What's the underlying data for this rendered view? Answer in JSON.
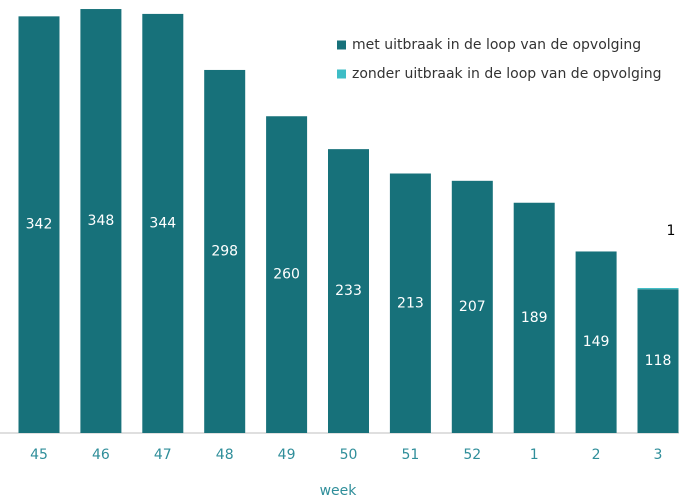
{
  "chart_data": {
    "type": "stacked_bar",
    "categories": [
      "45",
      "46",
      "47",
      "48",
      "49",
      "50",
      "51",
      "52",
      "1",
      "2",
      "3"
    ],
    "series": [
      {
        "name": "met uitbraak in de loop van de opvolging",
        "color": "#17717a",
        "values": [
          342,
          348,
          344,
          298,
          260,
          233,
          213,
          207,
          189,
          149,
          118
        ]
      },
      {
        "name": "zonder uitbraak in de loop van de opvolging",
        "color": "#3ebdc6",
        "values": [
          0,
          0,
          0,
          0,
          0,
          0,
          0,
          0,
          0,
          0,
          1
        ]
      }
    ],
    "xlabel": "week",
    "ylim": [
      0,
      350
    ],
    "legend": "upper right"
  }
}
